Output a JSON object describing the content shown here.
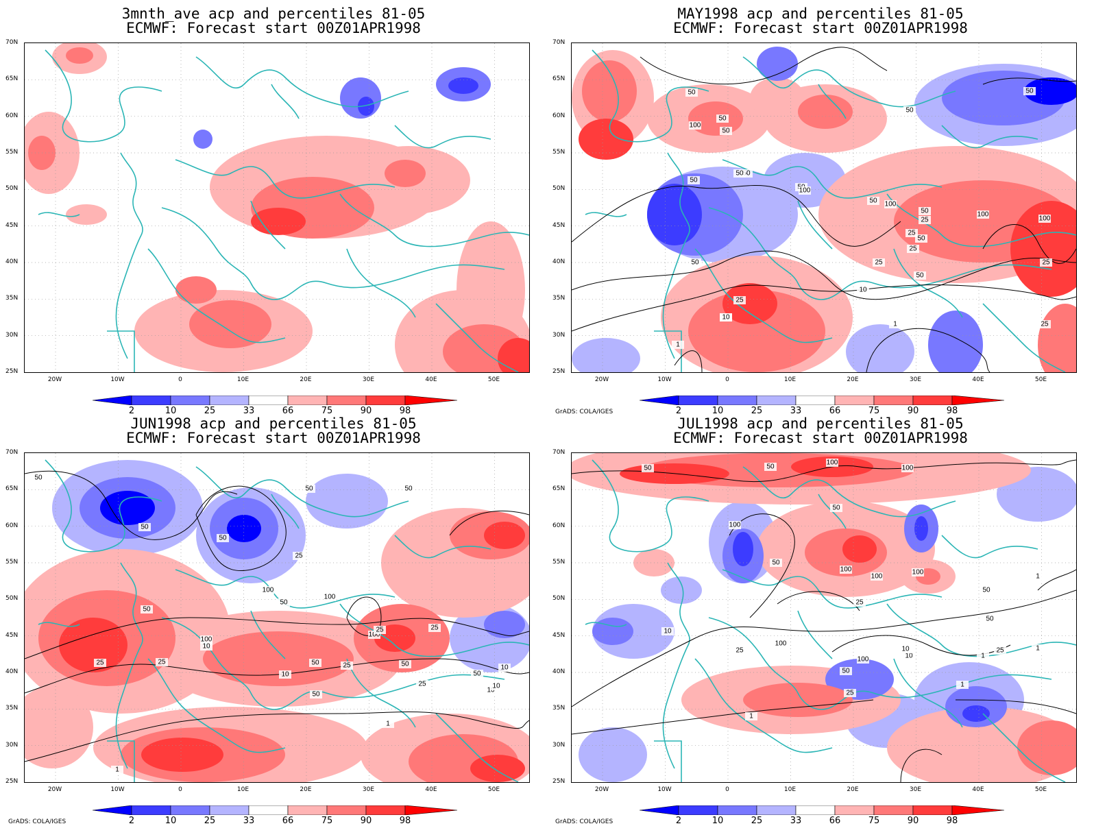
{
  "panels": [
    {
      "title_line1": "3mnth_ave acp and percentiles 81-05",
      "title_line2": "ECMWF: Forecast start 00Z01APR1998",
      "credit": "",
      "contour_labels": []
    },
    {
      "title_line1": "MAY1998 acp and percentiles 81-05",
      "title_line2": "ECMWF: Forecast start 00Z01APR1998",
      "credit": "GrADS: COLA/IGES",
      "contour_labels": [
        "50",
        "50",
        "50",
        "50",
        "50",
        "100",
        "50",
        "50",
        "100",
        "50",
        "100",
        "50",
        "25",
        "25",
        "50",
        "100",
        "100",
        "25",
        "50",
        "25",
        "50",
        "50",
        "10",
        "10",
        "25",
        "10",
        "50",
        "1",
        "25",
        "25",
        "1"
      ]
    },
    {
      "title_line1": "JUN1998 acp and percentiles 81-05",
      "title_line2": "ECMWF: Forecast start 00Z01APR1998",
      "credit": "GrADS: COLA/IGES",
      "contour_labels": [
        "50",
        "50",
        "50",
        "50",
        "50",
        "100",
        "50",
        "25",
        "50",
        "50",
        "100",
        "100",
        "25",
        "25",
        "100",
        "25",
        "25",
        "10",
        "50",
        "50",
        "25",
        "10",
        "50",
        "10",
        "10",
        "25",
        "10",
        "1",
        "1"
      ]
    },
    {
      "title_line1": "JUL1998 acp and percentiles 81-05",
      "title_line2": "ECMWF: Forecast start 00Z01APR1998",
      "credit": "GrADS: COLA/IGES",
      "contour_labels": [
        "50",
        "50",
        "100",
        "100",
        "50",
        "100",
        "50",
        "100",
        "100",
        "100",
        "50",
        "25",
        "10",
        "25",
        "100",
        "50",
        "10",
        "10",
        "100",
        "25",
        "1",
        "1",
        "25",
        "1",
        "50",
        "1",
        "1"
      ]
    }
  ],
  "axes": {
    "lat_labels": [
      "70N",
      "65N",
      "60N",
      "55N",
      "50N",
      "45N",
      "40N",
      "35N",
      "30N",
      "25N"
    ],
    "lon_labels": [
      "20W",
      "10W",
      "0",
      "10E",
      "20E",
      "30E",
      "40E",
      "50E"
    ]
  },
  "colorbar": {
    "labels": [
      "2",
      "10",
      "25",
      "33",
      "66",
      "75",
      "90",
      "98"
    ],
    "colors": [
      "#0000ff",
      "#3c3cff",
      "#7878ff",
      "#b4b4ff",
      "#ffffff",
      "#ffb4b4",
      "#ff7878",
      "#ff3c3c",
      "#ff0000"
    ]
  },
  "colors": {
    "coastline": "#2ab5b5",
    "contour": "#000000",
    "grid": "#9a9a9a"
  }
}
